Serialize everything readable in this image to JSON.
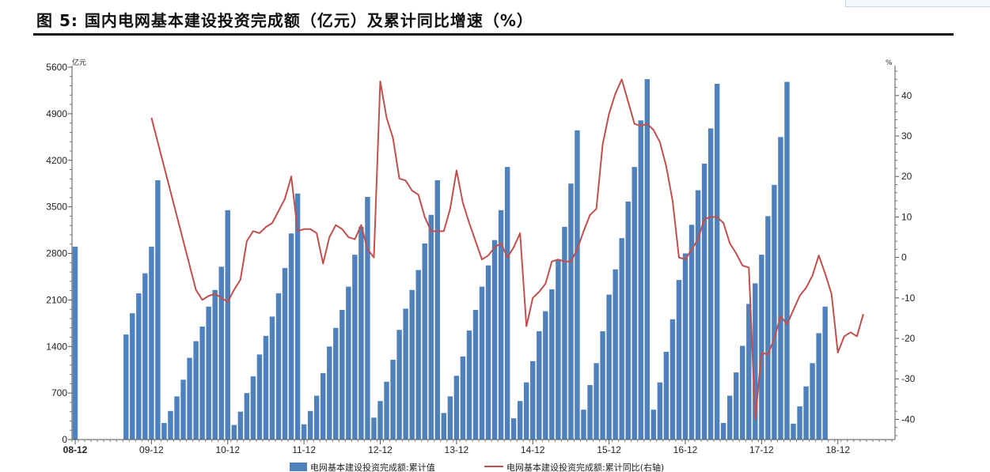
{
  "header": {
    "title": "图 5:  国内电网基本建设投资完成额（亿元）及累计同比增速（%）"
  },
  "chart_data": {
    "type": "bar+line",
    "left_axis": {
      "unit": "亿元",
      "min": 0,
      "max": 5600,
      "step": 700,
      "ticks": [
        "0",
        "700",
        "1400",
        "2100",
        "2800",
        "3500",
        "4200",
        "4900",
        "5600"
      ]
    },
    "right_axis": {
      "unit": "%",
      "min": -45,
      "max": 47,
      "ticks": [
        -40,
        -30,
        -20,
        -10,
        0,
        10,
        20,
        30,
        40
      ],
      "tick_labels": [
        "-40",
        "-30",
        "-20",
        "-10",
        "0",
        "10",
        "20",
        "30",
        "40"
      ]
    },
    "x_labels": [
      {
        "label": "08-12",
        "index": 0
      },
      {
        "label": "09-12",
        "index": 12
      },
      {
        "label": "10-12",
        "index": 24
      },
      {
        "label": "11-12",
        "index": 36
      },
      {
        "label": "12-12",
        "index": 48
      },
      {
        "label": "13-12",
        "index": 60
      },
      {
        "label": "14-12",
        "index": 72
      },
      {
        "label": "15-12",
        "index": 84
      },
      {
        "label": "16-12",
        "index": 96
      },
      {
        "label": "17-12",
        "index": 108
      },
      {
        "label": "18-12",
        "index": 120
      }
    ],
    "n_periods": 129,
    "bar_series": {
      "name": "电网基本建设投资完成额:累计值",
      "color": "#4f81bd",
      "values": [
        2900,
        null,
        null,
        null,
        null,
        null,
        null,
        null,
        1580,
        1900,
        2200,
        2500,
        2900,
        3900,
        250,
        430,
        650,
        900,
        1230,
        1480,
        1700,
        2000,
        2250,
        2600,
        3450,
        220,
        420,
        700,
        950,
        1280,
        1560,
        1850,
        2200,
        2580,
        3100,
        3700,
        230,
        430,
        660,
        1000,
        1400,
        1680,
        1950,
        2300,
        2780,
        3200,
        3650,
        330,
        580,
        870,
        1200,
        1650,
        1970,
        2250,
        2550,
        2950,
        3380,
        3900,
        400,
        650,
        960,
        1250,
        1640,
        1950,
        2300,
        2620,
        3000,
        3450,
        4100,
        320,
        580,
        860,
        1180,
        1630,
        1930,
        2260,
        2700,
        3200,
        3850,
        4650,
        450,
        820,
        1150,
        1630,
        2180,
        2560,
        3030,
        3580,
        4100,
        4800,
        5420,
        450,
        860,
        1320,
        1810,
        2400,
        2800,
        3230,
        3750,
        4150,
        4680,
        5350,
        250,
        660,
        1010,
        1410,
        2040,
        2350,
        2780,
        3360,
        3830,
        4550,
        5380,
        240,
        500,
        800,
        1150,
        1600,
        2000
      ]
    },
    "line_series": {
      "name": "电网基本建设投资完成额:累计同比(右轴)",
      "color": "#c0504d",
      "points": [
        [
          12,
          34.5
        ],
        [
          19,
          -8
        ],
        [
          20,
          -10.5
        ],
        [
          21,
          -9.5
        ],
        [
          22,
          -9
        ],
        [
          23,
          -10
        ],
        [
          24,
          -11
        ],
        [
          25,
          -8
        ],
        [
          26,
          -5.5
        ],
        [
          27,
          4
        ],
        [
          28,
          6.5
        ],
        [
          29,
          6
        ],
        [
          30,
          7.5
        ],
        [
          31,
          8.5
        ],
        [
          32,
          11.5
        ],
        [
          33,
          14.5
        ],
        [
          34,
          20
        ],
        [
          35,
          6.5
        ],
        [
          36,
          7
        ],
        [
          37,
          7
        ],
        [
          38,
          6
        ],
        [
          39,
          -1.5
        ],
        [
          40,
          5
        ],
        [
          41,
          8
        ],
        [
          42,
          7
        ],
        [
          43,
          5
        ],
        [
          44,
          4.5
        ],
        [
          45,
          8
        ],
        [
          46,
          2
        ],
        [
          47,
          0
        ],
        [
          48,
          43.5
        ],
        [
          49,
          34.5
        ],
        [
          50,
          29.5
        ],
        [
          51,
          19.5
        ],
        [
          52,
          19
        ],
        [
          53,
          16.5
        ],
        [
          54,
          15.5
        ],
        [
          55,
          10
        ],
        [
          56,
          6.5
        ],
        [
          57,
          6.5
        ],
        [
          58,
          6.5
        ],
        [
          59,
          12
        ],
        [
          60,
          21.5
        ],
        [
          61,
          13.5
        ],
        [
          62,
          8.5
        ],
        [
          63,
          4
        ],
        [
          64,
          -0.5
        ],
        [
          65,
          0.5
        ],
        [
          66,
          2.5
        ],
        [
          67,
          3.5
        ],
        [
          68,
          0
        ],
        [
          69,
          2.5
        ],
        [
          70,
          6
        ],
        [
          71,
          -17
        ],
        [
          72,
          -10
        ],
        [
          73,
          -8.5
        ],
        [
          74,
          -6.5
        ],
        [
          75,
          -1
        ],
        [
          76,
          -0.5
        ],
        [
          77,
          -1
        ],
        [
          78,
          -1
        ],
        [
          79,
          2
        ],
        [
          80,
          6.5
        ],
        [
          81,
          10.5
        ],
        [
          82,
          12
        ],
        [
          83,
          28
        ],
        [
          84,
          35.5
        ],
        [
          85,
          40.5
        ],
        [
          86,
          44
        ],
        [
          87,
          38.5
        ],
        [
          88,
          33
        ],
        [
          89,
          32.5
        ],
        [
          90,
          33
        ],
        [
          91,
          31.5
        ],
        [
          92,
          28.5
        ],
        [
          93,
          22.5
        ],
        [
          94,
          14
        ],
        [
          95,
          0
        ],
        [
          96,
          -0.5
        ],
        [
          97,
          2
        ],
        [
          98,
          4.5
        ],
        [
          99,
          9.5
        ],
        [
          100,
          10
        ],
        [
          101,
          10
        ],
        [
          102,
          8.5
        ],
        [
          103,
          3.5
        ],
        [
          104,
          1
        ],
        [
          105,
          -2
        ],
        [
          106,
          -2.5
        ],
        [
          107,
          -40
        ],
        [
          108,
          -23.5
        ],
        [
          109,
          -24
        ],
        [
          110,
          -20
        ],
        [
          111,
          -14.5
        ],
        [
          112,
          -16.5
        ],
        [
          113,
          -13
        ],
        [
          114,
          -9.5
        ],
        [
          115,
          -7.5
        ],
        [
          116,
          -4.5
        ],
        [
          117,
          0.5
        ],
        [
          118,
          -4
        ],
        [
          119,
          -9
        ],
        [
          120,
          -23.5
        ],
        [
          121,
          -19.5
        ],
        [
          122,
          -18.5
        ],
        [
          123,
          -19.5
        ],
        [
          124,
          -14
        ]
      ]
    }
  }
}
